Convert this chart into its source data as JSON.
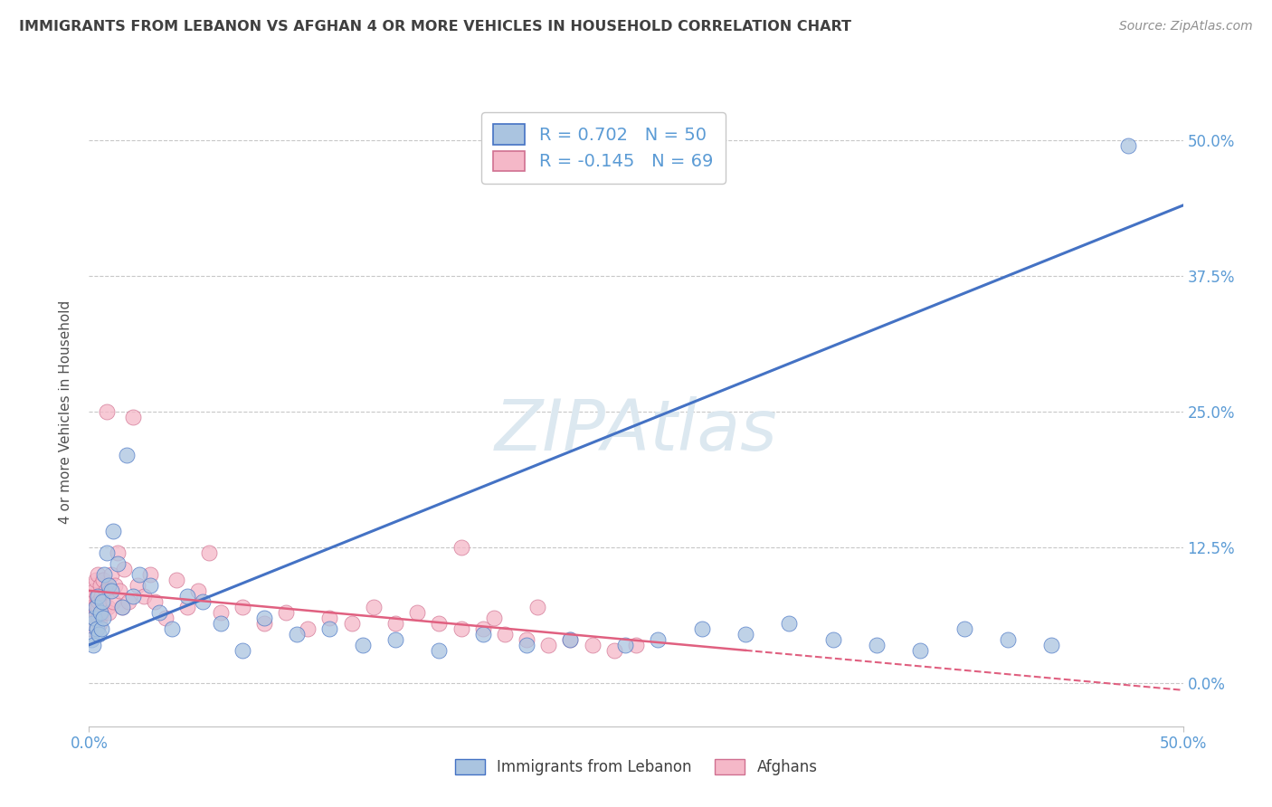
{
  "title": "IMMIGRANTS FROM LEBANON VS AFGHAN 4 OR MORE VEHICLES IN HOUSEHOLD CORRELATION CHART",
  "source": "Source: ZipAtlas.com",
  "ylabel": "4 or more Vehicles in Household",
  "ytick_vals": [
    0.0,
    12.5,
    25.0,
    37.5,
    50.0
  ],
  "xlim": [
    0,
    50
  ],
  "ylim": [
    -4,
    54
  ],
  "legend_label1": "Immigrants from Lebanon",
  "legend_label2": "Afghans",
  "R1": 0.702,
  "N1": 50,
  "R2": -0.145,
  "N2": 69,
  "color_blue": "#aac4e0",
  "color_pink": "#f5b8c8",
  "line_color_blue": "#4472c4",
  "line_color_pink": "#e06080",
  "watermark": "ZIPAtlas",
  "watermark_color": "#dce8f0",
  "title_color": "#404040",
  "source_color": "#909090",
  "axis_label_color": "#5b9bd5",
  "blue_scatter_x": [
    0.1,
    0.15,
    0.2,
    0.25,
    0.3,
    0.35,
    0.4,
    0.45,
    0.5,
    0.55,
    0.6,
    0.65,
    0.7,
    0.8,
    0.9,
    1.0,
    1.1,
    1.3,
    1.5,
    1.7,
    2.0,
    2.3,
    2.8,
    3.2,
    3.8,
    4.5,
    5.2,
    6.0,
    7.0,
    8.0,
    9.5,
    11.0,
    12.5,
    14.0,
    16.0,
    18.0,
    20.0,
    22.0,
    24.5,
    26.0,
    28.0,
    30.0,
    32.0,
    34.0,
    36.0,
    38.0,
    40.0,
    42.0,
    44.0,
    47.5
  ],
  "blue_scatter_y": [
    4.0,
    5.5,
    3.5,
    6.0,
    7.0,
    5.0,
    8.0,
    4.5,
    6.5,
    5.0,
    7.5,
    6.0,
    10.0,
    12.0,
    9.0,
    8.5,
    14.0,
    11.0,
    7.0,
    21.0,
    8.0,
    10.0,
    9.0,
    6.5,
    5.0,
    8.0,
    7.5,
    5.5,
    3.0,
    6.0,
    4.5,
    5.0,
    3.5,
    4.0,
    3.0,
    4.5,
    3.5,
    4.0,
    3.5,
    4.0,
    5.0,
    4.5,
    5.5,
    4.0,
    3.5,
    3.0,
    5.0,
    4.0,
    3.5,
    49.5
  ],
  "pink_scatter_x": [
    0.05,
    0.08,
    0.1,
    0.12,
    0.15,
    0.18,
    0.2,
    0.22,
    0.25,
    0.28,
    0.3,
    0.32,
    0.35,
    0.38,
    0.4,
    0.42,
    0.45,
    0.48,
    0.5,
    0.55,
    0.6,
    0.65,
    0.7,
    0.75,
    0.8,
    0.85,
    0.9,
    0.95,
    1.0,
    1.1,
    1.2,
    1.3,
    1.4,
    1.5,
    1.6,
    1.8,
    2.0,
    2.2,
    2.5,
    2.8,
    3.0,
    3.5,
    4.0,
    4.5,
    5.0,
    5.5,
    6.0,
    7.0,
    8.0,
    9.0,
    10.0,
    11.0,
    12.0,
    13.0,
    14.0,
    15.0,
    16.0,
    17.0,
    18.0,
    19.0,
    20.0,
    21.0,
    22.0,
    23.0,
    24.0,
    25.0,
    17.0,
    18.5,
    20.5
  ],
  "pink_scatter_y": [
    6.0,
    5.0,
    8.0,
    6.5,
    7.0,
    5.5,
    9.0,
    6.0,
    8.5,
    7.0,
    6.5,
    9.5,
    8.0,
    7.0,
    10.0,
    6.0,
    7.5,
    5.5,
    9.0,
    8.0,
    6.5,
    9.5,
    7.0,
    8.5,
    25.0,
    7.0,
    6.5,
    8.5,
    10.0,
    7.5,
    9.0,
    12.0,
    8.5,
    7.0,
    10.5,
    7.5,
    24.5,
    9.0,
    8.0,
    10.0,
    7.5,
    6.0,
    9.5,
    7.0,
    8.5,
    12.0,
    6.5,
    7.0,
    5.5,
    6.5,
    5.0,
    6.0,
    5.5,
    7.0,
    5.5,
    6.5,
    5.5,
    5.0,
    5.0,
    4.5,
    4.0,
    3.5,
    4.0,
    3.5,
    3.0,
    3.5,
    12.5,
    6.0,
    7.0
  ],
  "blue_trend_x": [
    0,
    50
  ],
  "blue_trend_y": [
    3.5,
    44.0
  ],
  "pink_trend_x": [
    0,
    30
  ],
  "pink_trend_y": [
    8.5,
    3.0
  ]
}
